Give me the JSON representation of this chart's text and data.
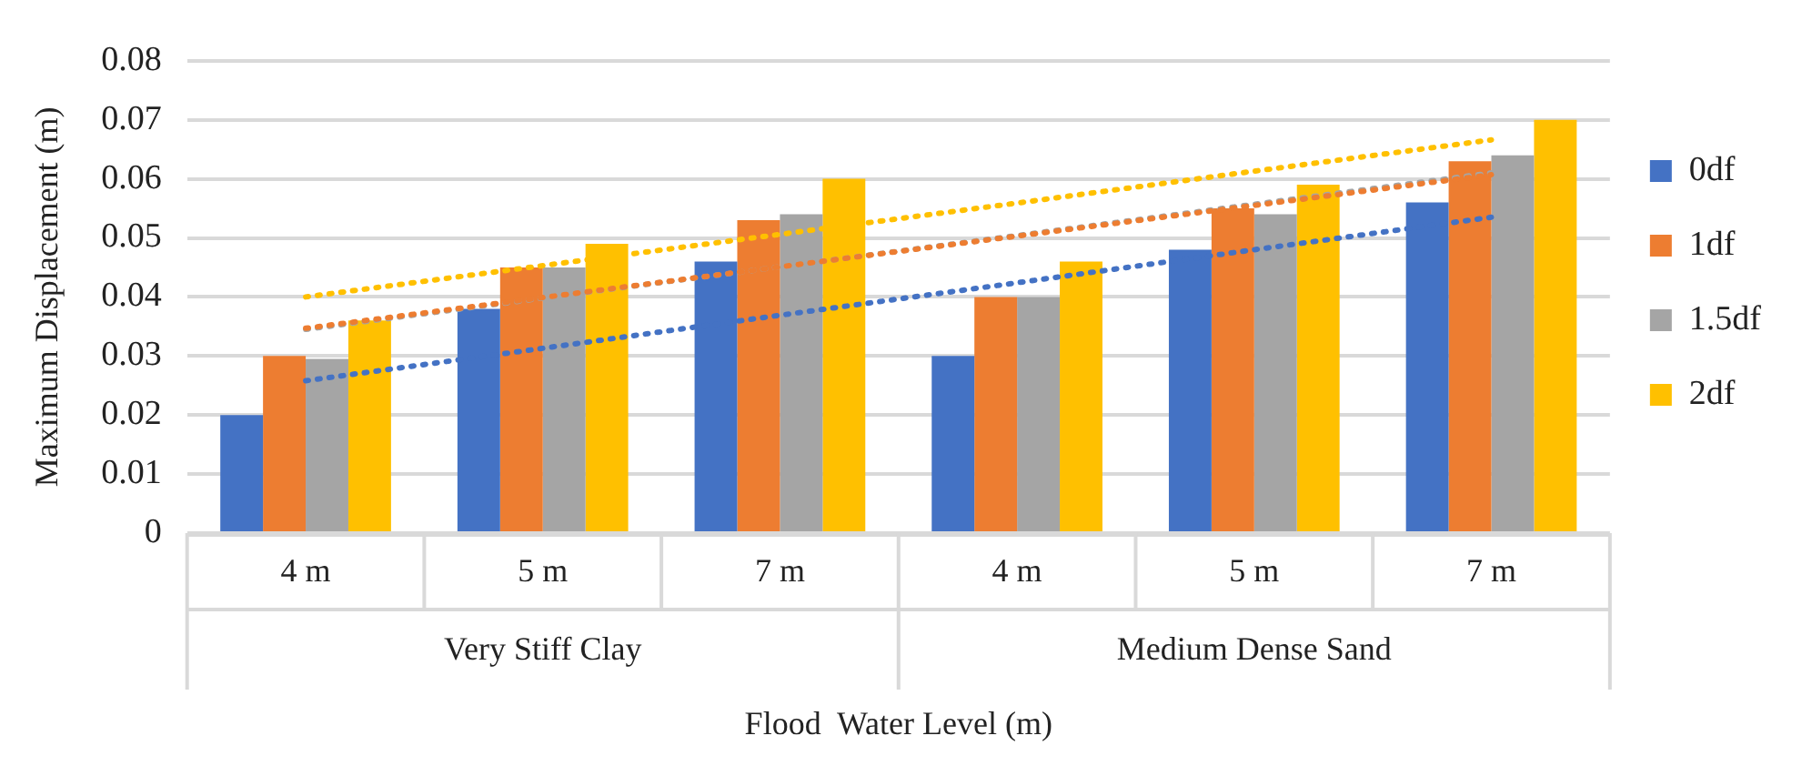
{
  "chart_data": {
    "type": "bar",
    "xlabel": "Flood  Water Level (m)",
    "ylabel": "Maximum Displacement (m)",
    "categories": [
      "4 m",
      "5 m",
      "7 m",
      "4 m",
      "5 m",
      "7 m"
    ],
    "annotations": [
      "Very Stiff Clay",
      "Medium Dense Sand"
    ],
    "series": [
      {
        "name": "0df",
        "color": "#4472c4",
        "values": [
          0.02,
          0.038,
          0.046,
          0.03,
          0.048,
          0.056
        ]
      },
      {
        "name": "1df",
        "color": "#ed7d31",
        "values": [
          0.03,
          0.045,
          0.053,
          0.04,
          0.055,
          0.063
        ]
      },
      {
        "name": "1.5df",
        "color": "#a5a5a5",
        "values": [
          0.0295,
          0.045,
          0.054,
          0.04,
          0.054,
          0.064
        ]
      },
      {
        "name": "2df",
        "color": "#ffc000",
        "values": [
          0.036,
          0.049,
          0.06,
          0.046,
          0.059,
          0.07
        ]
      },
      {
        "type": "line",
        "line_style": "dotted",
        "marker": "none",
        "color": "#4472c4",
        "values": [
          0.0258,
          0.0313,
          0.0369,
          0.0424,
          0.048,
          0.0535
        ]
      },
      {
        "type": "line",
        "line_style": "dotted",
        "marker": "none",
        "color": "#ed7d31",
        "values": [
          0.0347,
          0.0399,
          0.0451,
          0.0503,
          0.0555,
          0.0607
        ]
      },
      {
        "type": "line",
        "line_style": "dotted",
        "marker": "none",
        "color": "#a5a5a5",
        "values": [
          0.0345,
          0.0398,
          0.0451,
          0.0504,
          0.0557,
          0.061
        ]
      },
      {
        "type": "line",
        "line_style": "dotted",
        "marker": "none",
        "color": "#ffc000",
        "values": [
          0.04,
          0.0453,
          0.0506,
          0.0559,
          0.0613,
          0.0666
        ]
      }
    ],
    "ylim": [
      0,
      0.08
    ],
    "yticks": [
      0,
      0.01,
      0.02,
      0.03,
      0.04,
      0.05,
      0.06,
      0.07,
      0.08
    ],
    "grid": "y",
    "legend": "right"
  }
}
